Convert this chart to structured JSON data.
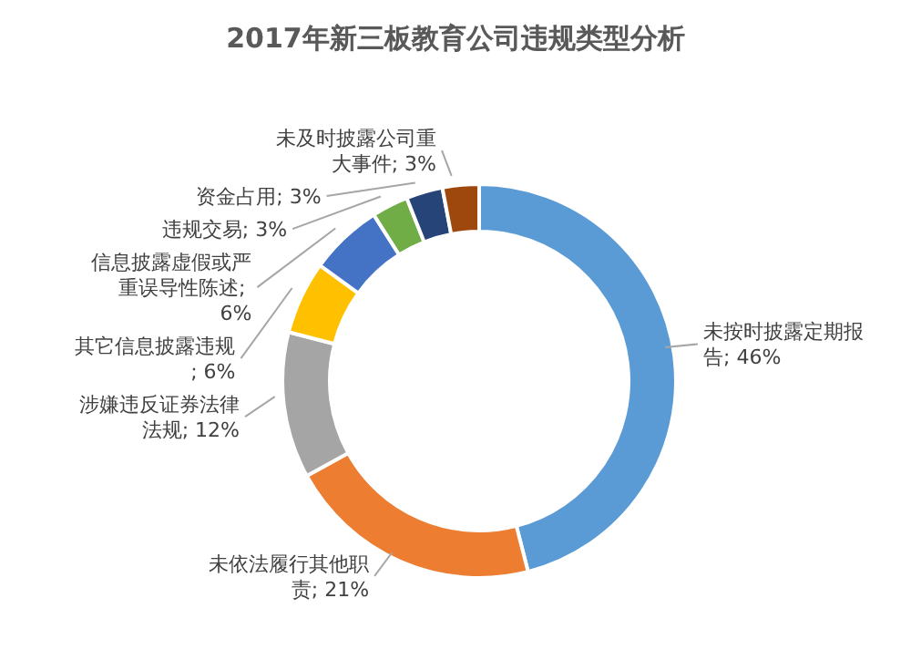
{
  "chart_data": {
    "type": "donut",
    "title": "2017年新三板教育公司违规类型分析",
    "categories": [
      "未按时披露定期报告",
      "未依法履行其他职责",
      "涉嫌违反证券法律法规",
      "其它信息披露违规",
      "信息披露虚假或严重误导性陈述",
      "违规交易",
      "资金占用",
      "未及时披露公司重大事件"
    ],
    "values": [
      46,
      21,
      12,
      6,
      6,
      3,
      3,
      3
    ],
    "value_labels": [
      "; 46%",
      "; 21%",
      "; 12%",
      "; 6%",
      "; 6%",
      "; 3%",
      "; 3%",
      "; 3%"
    ],
    "colors": [
      "#5b9bd5",
      "#ed7d31",
      "#a5a5a5",
      "#ffc000",
      "#4472c4",
      "#70ad47",
      "#264478",
      "#9e480e"
    ]
  }
}
